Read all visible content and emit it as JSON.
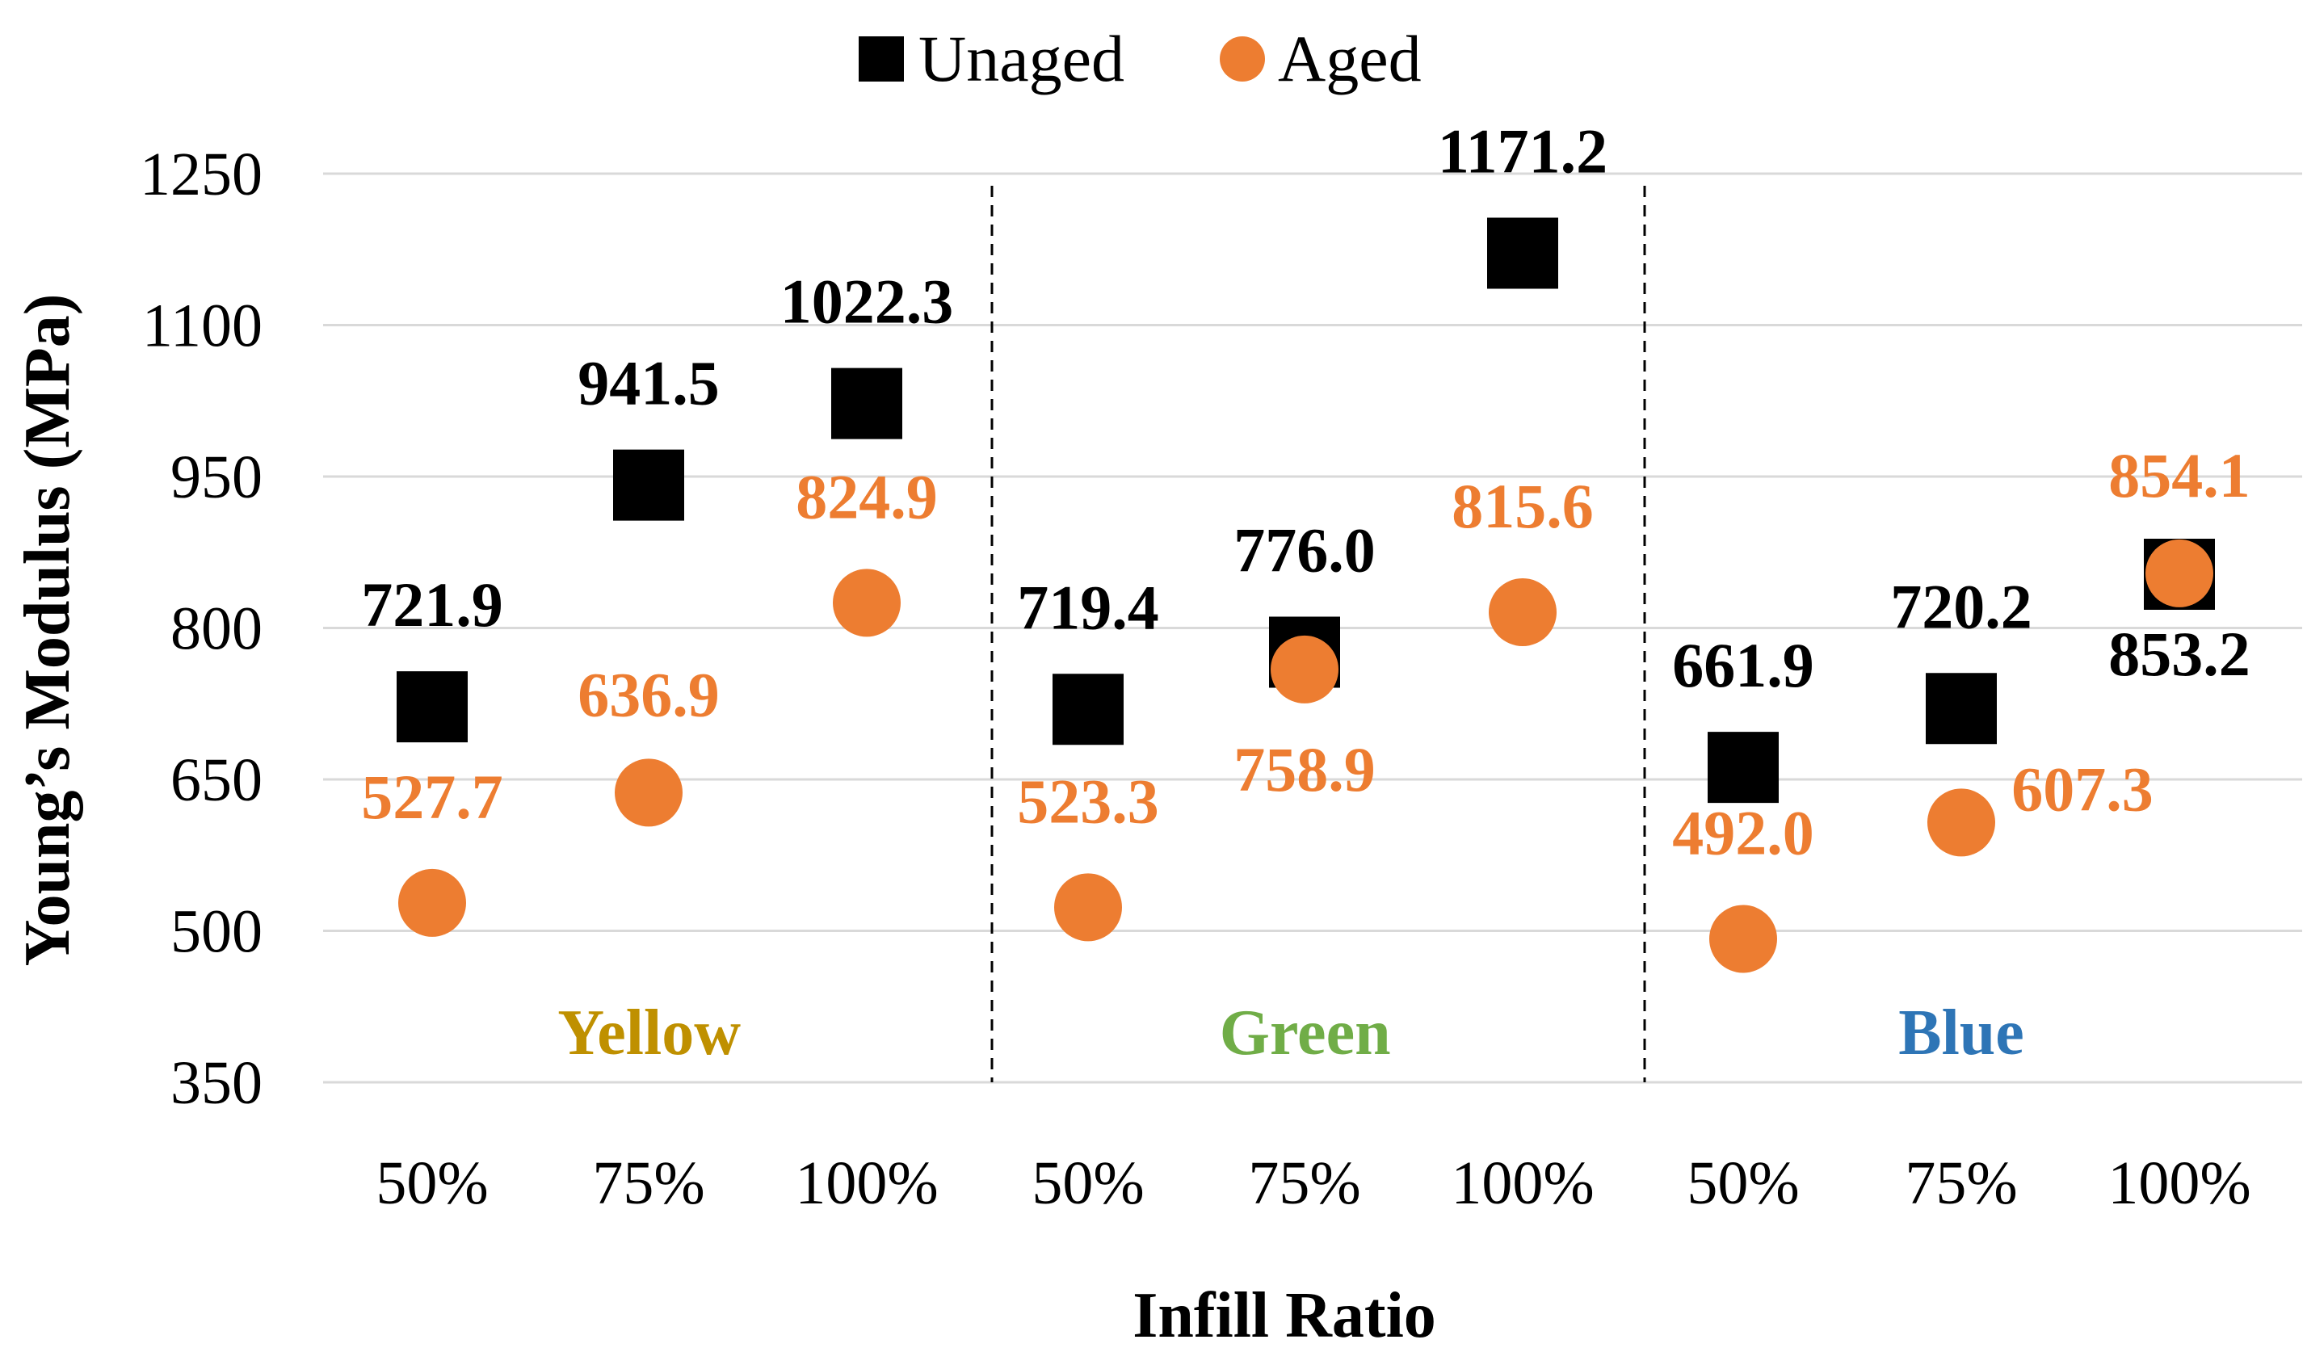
{
  "chart_data": {
    "type": "scatter",
    "xlabel": "Infill Ratio",
    "ylabel": "Young’s Modulus (MPa)",
    "ylim": [
      350,
      1250
    ],
    "yticks": [
      350,
      500,
      650,
      800,
      950,
      1100,
      1250
    ],
    "grid": "horizontal",
    "legend_position": "top-center",
    "categories": [
      "50%",
      "75%",
      "100%",
      "50%",
      "75%",
      "100%",
      "50%",
      "75%",
      "100%"
    ],
    "groups": [
      {
        "name": "Yellow",
        "color": "#BF9000",
        "categories": [
          0,
          1,
          2
        ]
      },
      {
        "name": "Green",
        "color": "#70AD47",
        "categories": [
          3,
          4,
          5
        ]
      },
      {
        "name": "Blue",
        "color": "#2E75B6",
        "categories": [
          6,
          7,
          8
        ]
      }
    ],
    "series": [
      {
        "name": "Unaged",
        "marker": "square",
        "color": "#000000",
        "values": [
          721.9,
          941.5,
          1022.3,
          719.4,
          776.0,
          1171.2,
          661.9,
          720.2,
          853.2
        ],
        "labels": [
          "721.9",
          "941.5",
          "1022.3",
          "719.4",
          "776.0",
          "1171.2",
          "661.9",
          "720.2",
          "853.2"
        ]
      },
      {
        "name": "Aged",
        "marker": "circle",
        "color": "#ED7D31",
        "values": [
          527.7,
          636.9,
          824.9,
          523.3,
          758.9,
          815.6,
          492.0,
          607.3,
          854.1
        ],
        "labels": [
          "527.7",
          "636.9",
          "824.9",
          "523.3",
          "758.9",
          "815.6",
          "492.0",
          "607.3",
          "854.1"
        ]
      }
    ]
  }
}
